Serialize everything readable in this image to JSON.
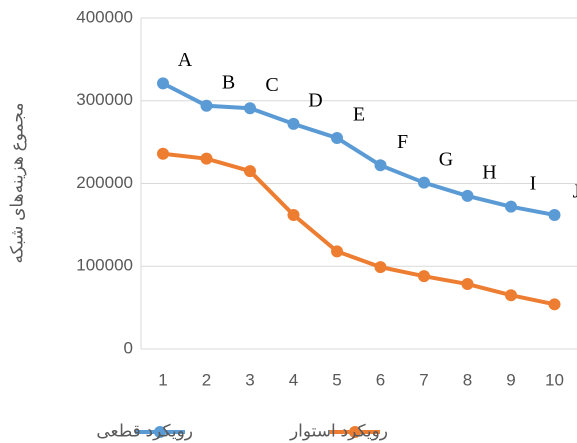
{
  "chart_data": {
    "type": "line",
    "y_label": "مجموع هزینه‌های شبکه",
    "categories": [
      "1",
      "2",
      "3",
      "4",
      "5",
      "6",
      "7",
      "8",
      "9",
      "10"
    ],
    "series": [
      {
        "name": "رویکرد قطعی",
        "color": "#5b9bd5",
        "values": [
          321000,
          294000,
          291000,
          272000,
          255000,
          222000,
          201000,
          185000,
          172000,
          162000
        ]
      },
      {
        "name": "رویکرد استوار",
        "color": "#ed7d31",
        "values": [
          236000,
          230000,
          215000,
          162000,
          118000,
          99000,
          88000,
          78500,
          65000,
          54000
        ]
      }
    ],
    "annotations": [
      "A",
      "B",
      "C",
      "D",
      "E",
      "F",
      "G",
      "H",
      "I",
      "J"
    ],
    "ylim": [
      0,
      400000
    ],
    "yticks": [
      0,
      100000,
      200000,
      300000,
      400000
    ],
    "grid": true,
    "legend": "bottom"
  }
}
